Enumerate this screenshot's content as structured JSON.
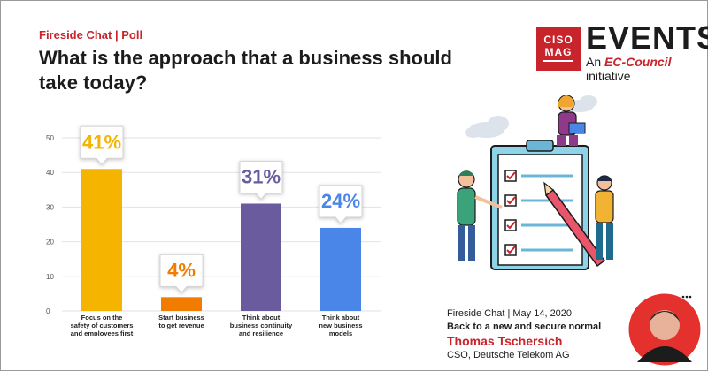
{
  "header": {
    "kicker": "Fireside Chat | Poll",
    "question": "What is the approach that a business should take today?"
  },
  "logo": {
    "line1": "CISO",
    "line2": "MAG",
    "events": "EVENTS",
    "sub_prefix": "An",
    "sub_brand": "EC-Council",
    "sub_suffix": "initiative"
  },
  "chart_data": {
    "type": "bar",
    "categories": [
      "Focus on the safety of customers and employees first",
      "Start business to get revenue",
      "Think about business continuity and resilience",
      "Think about new business models"
    ],
    "category_lines": [
      [
        "Focus on the",
        "safety of customers",
        "and employees first"
      ],
      [
        "Start business",
        "to get revenue"
      ],
      [
        "Think about",
        "business continuity",
        "and resilience"
      ],
      [
        "Think about",
        "new business",
        "models"
      ]
    ],
    "values": [
      41,
      4,
      31,
      24
    ],
    "data_labels": [
      "41%",
      "4%",
      "31%",
      "24%"
    ],
    "yticks": [
      "0",
      "10",
      "20",
      "30",
      "40",
      "50"
    ],
    "ylim": [
      0,
      50
    ],
    "grid": true,
    "colors": [
      "#f4b400",
      "#f27c00",
      "#6a5b9f",
      "#4a86e8"
    ]
  },
  "event_info": {
    "sub": "Fireside Chat | May 14, 2020",
    "topic": "Back to a new and secure normal",
    "speaker": "Thomas Tschersich",
    "role": "CSO, Deutsche Telekom AG"
  },
  "colors": {
    "accent_red": "#c8242b",
    "text_dark": "#1c1c1c",
    "grid": "#e2e2e2"
  }
}
